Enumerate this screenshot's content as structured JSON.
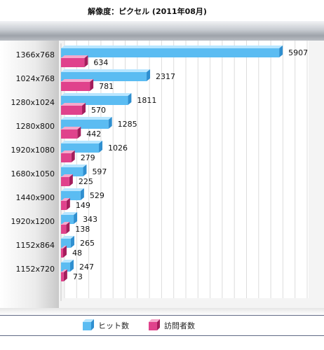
{
  "chart_data": {
    "type": "bar",
    "orientation": "horizontal",
    "title": "解像度：ピクセル (2011年08月)",
    "categories": [
      "1366x768",
      "1024x768",
      "1280x1024",
      "1280x800",
      "1920x1080",
      "1680x1050",
      "1440x900",
      "1920x1200",
      "1152x864",
      "1152x720"
    ],
    "series": [
      {
        "name": "ヒット数",
        "color": "#5bbcf2",
        "values": [
          5907,
          2317,
          1811,
          1285,
          1026,
          597,
          529,
          343,
          265,
          247
        ]
      },
      {
        "name": "訪問者数",
        "color": "#e0428c",
        "values": [
          634,
          781,
          570,
          442,
          279,
          225,
          149,
          138,
          48,
          73
        ]
      }
    ],
    "xlim": [
      0,
      6000
    ],
    "grid": true,
    "legend_position": "bottom"
  }
}
